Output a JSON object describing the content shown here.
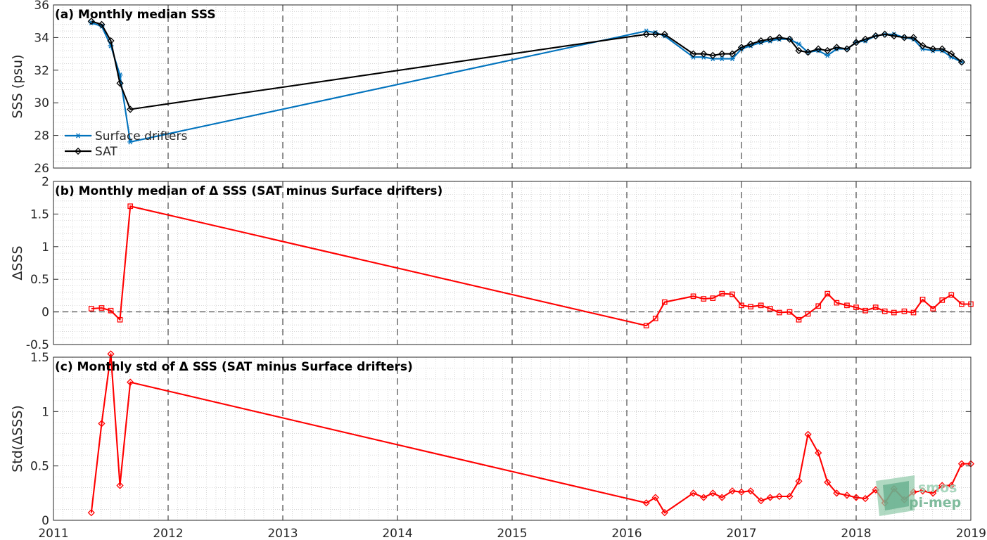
{
  "chart_data": [
    {
      "type": "line",
      "title": "(a) Monthly median SSS",
      "xlabel": "",
      "ylabel": "SSS (psu)",
      "xlim": [
        2011,
        2019
      ],
      "ylim": [
        26,
        36
      ],
      "yticks": [
        26,
        28,
        30,
        32,
        34,
        36
      ],
      "xticks": [
        2011,
        2012,
        2013,
        2014,
        2015,
        2016,
        2017,
        2018,
        2019
      ],
      "grid": true,
      "legend_position": "bottom-left",
      "series": [
        {
          "name": "Surface drifters",
          "color": "#0072BD",
          "marker": "asterisk",
          "x": [
            2011.33,
            2011.42,
            2011.5,
            2011.58,
            2011.67,
            2016.17,
            2016.25,
            2016.33,
            2016.58,
            2016.67,
            2016.75,
            2016.83,
            2016.92,
            2017.0,
            2017.08,
            2017.17,
            2017.25,
            2017.33,
            2017.42,
            2017.5,
            2017.58,
            2017.67,
            2017.75,
            2017.83,
            2017.92,
            2018.0,
            2018.08,
            2018.17,
            2018.25,
            2018.33,
            2018.42,
            2018.5,
            2018.58,
            2018.67,
            2018.75,
            2018.83,
            2018.92
          ],
          "y": [
            34.9,
            34.7,
            33.5,
            31.7,
            27.6,
            34.4,
            34.3,
            34.1,
            32.8,
            32.8,
            32.7,
            32.7,
            32.7,
            33.3,
            33.5,
            33.7,
            33.8,
            33.9,
            33.9,
            33.6,
            33.1,
            33.2,
            32.9,
            33.3,
            33.3,
            33.7,
            33.8,
            34.1,
            34.2,
            34.2,
            34.0,
            33.9,
            33.3,
            33.2,
            33.2,
            32.8,
            32.5
          ]
        },
        {
          "name": "SAT",
          "color": "#000000",
          "marker": "diamond",
          "x": [
            2011.33,
            2011.42,
            2011.5,
            2011.58,
            2011.67,
            2016.17,
            2016.25,
            2016.33,
            2016.58,
            2016.67,
            2016.75,
            2016.83,
            2016.92,
            2017.0,
            2017.08,
            2017.17,
            2017.25,
            2017.33,
            2017.42,
            2017.5,
            2017.58,
            2017.67,
            2017.75,
            2017.83,
            2017.92,
            2018.0,
            2018.08,
            2018.17,
            2018.25,
            2018.33,
            2018.42,
            2018.5,
            2018.58,
            2018.67,
            2018.75,
            2018.83,
            2018.92
          ],
          "y": [
            35.0,
            34.8,
            33.8,
            31.2,
            29.6,
            34.2,
            34.2,
            34.2,
            33.0,
            33.0,
            32.9,
            33.0,
            33.0,
            33.4,
            33.6,
            33.8,
            33.9,
            34.0,
            33.9,
            33.2,
            33.1,
            33.3,
            33.2,
            33.4,
            33.3,
            33.7,
            33.9,
            34.1,
            34.2,
            34.1,
            34.0,
            34.0,
            33.5,
            33.3,
            33.3,
            33.0,
            32.5
          ]
        }
      ]
    },
    {
      "type": "line",
      "title": "(b) Monthly median of Δ SSS (SAT minus Surface drifters)",
      "xlabel": "",
      "ylabel": "ΔSSS",
      "xlim": [
        2011,
        2019
      ],
      "ylim": [
        -0.5,
        2
      ],
      "yticks": [
        -0.5,
        0,
        0.5,
        1,
        1.5,
        2
      ],
      "ytick_labels": [
        "-0.5",
        "0",
        "0.5",
        "1",
        "1.5",
        "2"
      ],
      "xticks": [
        2011,
        2012,
        2013,
        2014,
        2015,
        2016,
        2017,
        2018,
        2019
      ],
      "grid": true,
      "zero_line": true,
      "series": [
        {
          "color": "#FF0000",
          "marker": "square",
          "x": [
            2011.33,
            2011.42,
            2011.5,
            2011.58,
            2011.67,
            2016.17,
            2016.25,
            2016.33,
            2016.58,
            2016.67,
            2016.75,
            2016.83,
            2016.92,
            2017.0,
            2017.08,
            2017.17,
            2017.25,
            2017.33,
            2017.42,
            2017.5,
            2017.58,
            2017.67,
            2017.75,
            2017.83,
            2017.92,
            2018.0,
            2018.08,
            2018.17,
            2018.25,
            2018.33,
            2018.42,
            2018.5,
            2018.58,
            2018.67,
            2018.75,
            2018.83,
            2018.92,
            2019.0
          ],
          "y": [
            0.05,
            0.06,
            0.02,
            -0.12,
            1.62,
            -0.21,
            -0.1,
            0.15,
            0.24,
            0.2,
            0.21,
            0.28,
            0.27,
            0.1,
            0.08,
            0.1,
            0.05,
            -0.01,
            0.0,
            -0.12,
            -0.03,
            0.09,
            0.28,
            0.14,
            0.1,
            0.07,
            0.02,
            0.07,
            0.01,
            -0.01,
            0.01,
            -0.01,
            0.19,
            0.05,
            0.18,
            0.26,
            0.12,
            0.12
          ]
        }
      ]
    },
    {
      "type": "line",
      "title": "(c) Monthly std of Δ SSS (SAT minus Surface drifters)",
      "xlabel": "",
      "ylabel": "Std(ΔSSS)",
      "xlim": [
        2011,
        2019
      ],
      "ylim": [
        0,
        1.5
      ],
      "yticks": [
        0,
        0.5,
        1,
        1.5
      ],
      "xticks": [
        2011,
        2012,
        2013,
        2014,
        2015,
        2016,
        2017,
        2018,
        2019
      ],
      "grid": true,
      "series": [
        {
          "color": "#FF0000",
          "marker": "diamond",
          "x": [
            2011.33,
            2011.42,
            2011.5,
            2011.58,
            2011.67,
            2016.17,
            2016.25,
            2016.33,
            2016.58,
            2016.67,
            2016.75,
            2016.83,
            2016.92,
            2017.0,
            2017.08,
            2017.17,
            2017.25,
            2017.33,
            2017.42,
            2017.5,
            2017.58,
            2017.67,
            2017.75,
            2017.83,
            2017.92,
            2018.0,
            2018.08,
            2018.17,
            2018.25,
            2018.33,
            2018.42,
            2018.5,
            2018.58,
            2018.67,
            2018.75,
            2018.83,
            2018.92,
            2019.0
          ],
          "y": [
            0.07,
            0.89,
            1.53,
            0.32,
            1.27,
            0.16,
            0.21,
            0.07,
            0.25,
            0.21,
            0.25,
            0.21,
            0.27,
            0.26,
            0.27,
            0.18,
            0.21,
            0.22,
            0.22,
            0.36,
            0.79,
            0.62,
            0.35,
            0.25,
            0.23,
            0.21,
            0.2,
            0.28,
            0.16,
            0.29,
            0.19,
            0.26,
            0.27,
            0.25,
            0.32,
            0.32,
            0.52,
            0.52
          ]
        }
      ]
    }
  ],
  "logo": {
    "line1": "smos",
    "line2": "pi-mep"
  }
}
